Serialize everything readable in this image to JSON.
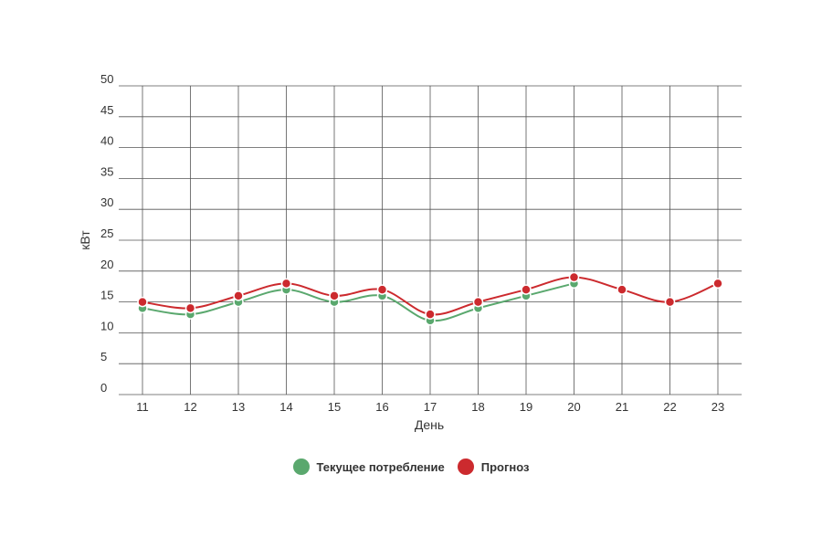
{
  "chart_data": {
    "type": "line",
    "xlabel": "День",
    "ylabel": "кВт",
    "x": [
      "11",
      "12",
      "13",
      "14",
      "15",
      "16",
      "17",
      "18",
      "19",
      "20",
      "21",
      "22",
      "23"
    ],
    "ylim": [
      0,
      50
    ],
    "yticks": [
      "0",
      "5",
      "10",
      "15",
      "20",
      "25",
      "30",
      "35",
      "40",
      "45",
      "50"
    ],
    "grid": true,
    "legend_position": "bottom",
    "series": [
      {
        "name": "Текущее потребление",
        "color": "#5aa86e",
        "values": [
          14,
          13,
          15,
          17,
          15,
          16,
          12,
          14,
          16,
          18,
          null,
          null,
          null
        ]
      },
      {
        "name": "Прогноз",
        "color": "#cc2a2e",
        "values": [
          15,
          14,
          16,
          18,
          16,
          17,
          13,
          15,
          17,
          19,
          17,
          15,
          18
        ]
      }
    ]
  }
}
